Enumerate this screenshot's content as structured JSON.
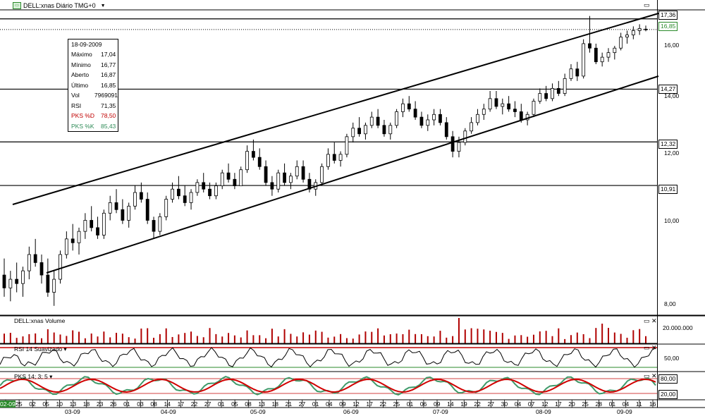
{
  "window": {
    "title": "DELL:xnas Diário TMG+0",
    "icon": "chart-window-icon"
  },
  "price_axis": {
    "ticks": [
      "16,00",
      "14,00",
      "12,00",
      "10,00",
      "8,00"
    ],
    "levels": [
      "17,36",
      "16,85",
      "14,27",
      "12,32",
      "10,91"
    ]
  },
  "info_box": {
    "date": "18-09-2009",
    "rows": [
      {
        "label": "Máximo",
        "value": "17,04"
      },
      {
        "label": "Mínimo",
        "value": "16,77"
      },
      {
        "label": "Aberto",
        "value": "16,87"
      },
      {
        "label": "Último",
        "value": "16,85"
      },
      {
        "label": "Vol",
        "value": "7969091"
      },
      {
        "label": "RSI",
        "value": "71,35"
      },
      {
        "label": "PKS %D",
        "value": "78,50"
      },
      {
        "label": "PKS %K",
        "value": "85,43"
      }
    ],
    "colors": {
      "pksd": "#c00000",
      "pksk": "#2e8b57"
    }
  },
  "volume_pane": {
    "title": "DELL:xnas Volume",
    "tick": "20.000.000"
  },
  "rsi_pane": {
    "title": "RSI 14 Suavizado",
    "tick": "50,00"
  },
  "pks_pane": {
    "title": "PKS 14; 3; 5",
    "ticks": [
      "80,00",
      "20,00"
    ]
  },
  "x_axis": {
    "days": [
      "02-09",
      "25",
      "02",
      "05",
      "10",
      "13",
      "18",
      "23",
      "26",
      "01",
      "03",
      "08",
      "14",
      "17",
      "22",
      "27",
      "01",
      "05",
      "08",
      "13",
      "18",
      "21",
      "27",
      "01",
      "04",
      "09",
      "12",
      "17",
      "22",
      "25",
      "01",
      "06",
      "09",
      "14",
      "19",
      "22",
      "27",
      "30",
      "04",
      "07",
      "12",
      "17",
      "20",
      "25",
      "28",
      "01",
      "04",
      "11",
      "16"
    ],
    "months": [
      "03-09",
      "04-09",
      "05-09",
      "06-09",
      "07-09",
      "08-09",
      "09-09"
    ]
  },
  "colors": {
    "accent": "#2a8a2a",
    "rsi_line": "#000000",
    "rsi_ref": "#c00000",
    "pks_d": "#d00000",
    "pks_k": "#3f9a6a"
  },
  "chart_data": {
    "type": "candlestick",
    "title": "DELL:xnas Diário TMG+0",
    "ylim": [
      7.6,
      17.8
    ],
    "log_scale": true,
    "horizontal_levels": [
      17.36,
      14.27,
      12.32,
      10.91
    ],
    "last_price": 16.85,
    "trend_channel": {
      "upper": {
        "from": [
          "2009-02",
          10.62
        ],
        "to": [
          "2009-09",
          17.15
        ]
      },
      "lower": {
        "from": [
          "2009-03",
          8.9
        ],
        "to": [
          "2009-09",
          14.55
        ]
      }
    },
    "ohlc": [
      [
        8.5,
        8.9,
        8.0,
        8.2
      ],
      [
        8.2,
        8.6,
        7.9,
        8.4
      ],
      [
        8.4,
        8.8,
        8.1,
        8.3
      ],
      [
        8.3,
        8.7,
        8.0,
        8.6
      ],
      [
        8.6,
        9.2,
        8.4,
        9.0
      ],
      [
        9.0,
        9.4,
        8.7,
        8.8
      ],
      [
        8.8,
        9.0,
        8.3,
        8.5
      ],
      [
        8.5,
        8.9,
        8.0,
        8.1
      ],
      [
        8.1,
        8.6,
        7.8,
        8.4
      ],
      [
        8.4,
        9.1,
        8.3,
        9.0
      ],
      [
        9.0,
        9.6,
        8.9,
        9.4
      ],
      [
        9.4,
        9.8,
        9.1,
        9.3
      ],
      [
        9.3,
        9.7,
        9.0,
        9.6
      ],
      [
        9.6,
        10.1,
        9.4,
        9.9
      ],
      [
        9.9,
        10.3,
        9.6,
        9.7
      ],
      [
        9.7,
        10.0,
        9.4,
        9.5
      ],
      [
        9.5,
        10.2,
        9.4,
        10.1
      ],
      [
        10.1,
        10.6,
        9.9,
        10.4
      ],
      [
        10.4,
        10.8,
        10.1,
        10.2
      ],
      [
        10.2,
        10.5,
        9.8,
        9.9
      ],
      [
        9.9,
        10.4,
        9.7,
        10.3
      ],
      [
        10.3,
        10.9,
        10.2,
        10.7
      ],
      [
        10.7,
        11.0,
        10.4,
        10.5
      ],
      [
        10.5,
        10.7,
        9.8,
        9.9
      ],
      [
        9.9,
        10.0,
        9.4,
        9.6
      ],
      [
        9.6,
        10.1,
        9.5,
        10.0
      ],
      [
        10.0,
        10.6,
        9.9,
        10.5
      ],
      [
        10.5,
        11.0,
        10.4,
        10.8
      ],
      [
        10.8,
        11.2,
        10.5,
        10.6
      ],
      [
        10.6,
        10.9,
        10.3,
        10.4
      ],
      [
        10.4,
        10.8,
        10.2,
        10.7
      ],
      [
        10.7,
        11.1,
        10.6,
        11.0
      ],
      [
        11.0,
        11.3,
        10.7,
        10.8
      ],
      [
        10.8,
        11.0,
        10.5,
        10.6
      ],
      [
        10.6,
        11.0,
        10.5,
        10.9
      ],
      [
        10.9,
        11.4,
        10.8,
        11.3
      ],
      [
        11.3,
        11.6,
        11.0,
        11.1
      ],
      [
        11.1,
        11.3,
        10.8,
        10.9
      ],
      [
        10.9,
        11.5,
        10.9,
        11.4
      ],
      [
        11.4,
        12.2,
        11.3,
        12.0
      ],
      [
        12.0,
        12.4,
        11.7,
        11.8
      ],
      [
        11.8,
        12.1,
        11.4,
        11.5
      ],
      [
        11.5,
        11.7,
        10.9,
        11.0
      ],
      [
        11.0,
        11.2,
        10.6,
        10.8
      ],
      [
        10.8,
        11.4,
        10.7,
        11.3
      ],
      [
        11.3,
        11.6,
        10.9,
        11.0
      ],
      [
        11.0,
        11.3,
        10.8,
        11.2
      ],
      [
        11.2,
        11.7,
        11.1,
        11.5
      ],
      [
        11.5,
        11.7,
        11.0,
        11.1
      ],
      [
        11.1,
        11.3,
        10.7,
        10.8
      ],
      [
        10.8,
        11.1,
        10.6,
        11.0
      ],
      [
        11.0,
        11.6,
        10.9,
        11.5
      ],
      [
        11.5,
        12.1,
        11.4,
        11.9
      ],
      [
        11.9,
        12.3,
        11.6,
        11.7
      ],
      [
        11.7,
        12.0,
        11.5,
        11.9
      ],
      [
        11.9,
        12.6,
        11.8,
        12.5
      ],
      [
        12.5,
        13.0,
        12.3,
        12.8
      ],
      [
        12.8,
        13.2,
        12.5,
        12.6
      ],
      [
        12.6,
        13.0,
        12.4,
        12.9
      ],
      [
        12.9,
        13.4,
        12.8,
        13.2
      ],
      [
        13.2,
        13.5,
        12.8,
        12.9
      ],
      [
        12.9,
        13.1,
        12.5,
        12.6
      ],
      [
        12.6,
        13.0,
        12.4,
        12.9
      ],
      [
        12.9,
        13.5,
        12.8,
        13.4
      ],
      [
        13.4,
        13.9,
        13.2,
        13.7
      ],
      [
        13.7,
        14.0,
        13.4,
        13.5
      ],
      [
        13.5,
        13.8,
        13.1,
        13.2
      ],
      [
        13.2,
        13.4,
        12.8,
        12.9
      ],
      [
        12.9,
        13.3,
        12.7,
        13.1
      ],
      [
        13.1,
        13.5,
        12.9,
        13.3
      ],
      [
        13.3,
        13.5,
        12.9,
        13.0
      ],
      [
        13.0,
        13.2,
        12.4,
        12.5
      ],
      [
        12.5,
        12.7,
        11.8,
        12.0
      ],
      [
        12.0,
        12.5,
        11.8,
        12.3
      ],
      [
        12.3,
        12.8,
        12.2,
        12.7
      ],
      [
        12.7,
        13.2,
        12.6,
        13.0
      ],
      [
        13.0,
        13.5,
        12.9,
        13.3
      ],
      [
        13.3,
        13.7,
        13.1,
        13.5
      ],
      [
        13.5,
        14.2,
        13.4,
        13.9
      ],
      [
        13.9,
        14.2,
        13.5,
        13.6
      ],
      [
        13.6,
        13.9,
        13.3,
        13.7
      ],
      [
        13.7,
        14.0,
        13.4,
        13.5
      ],
      [
        13.5,
        13.8,
        13.2,
        13.4
      ],
      [
        13.4,
        13.7,
        13.0,
        13.1
      ],
      [
        13.1,
        13.4,
        12.9,
        13.3
      ],
      [
        13.3,
        13.9,
        13.2,
        13.8
      ],
      [
        13.8,
        14.3,
        13.7,
        14.1
      ],
      [
        14.1,
        14.4,
        13.8,
        13.9
      ],
      [
        13.9,
        14.5,
        13.8,
        14.3
      ],
      [
        14.3,
        14.6,
        14.0,
        14.1
      ],
      [
        14.1,
        14.9,
        14.0,
        14.7
      ],
      [
        14.7,
        15.3,
        14.6,
        15.1
      ],
      [
        15.1,
        15.4,
        14.6,
        14.8
      ],
      [
        14.8,
        16.4,
        14.7,
        16.2
      ],
      [
        16.2,
        17.5,
        15.8,
        16.0
      ],
      [
        16.0,
        16.2,
        15.3,
        15.4
      ],
      [
        15.4,
        15.8,
        15.2,
        15.6
      ],
      [
        15.6,
        16.0,
        15.4,
        15.8
      ],
      [
        15.8,
        16.1,
        15.5,
        16.0
      ],
      [
        16.0,
        16.7,
        15.9,
        16.5
      ],
      [
        16.5,
        16.8,
        16.2,
        16.6
      ],
      [
        16.6,
        17.0,
        16.4,
        16.8
      ],
      [
        16.8,
        17.1,
        16.6,
        16.9
      ],
      [
        16.87,
        17.04,
        16.77,
        16.85
      ]
    ],
    "volume_max_label": "20.000.000",
    "indicators": {
      "RSI 14 Suavizado": {
        "last": 71.35
      },
      "PKS %D": {
        "last": 78.5
      },
      "PKS %K": {
        "last": 85.43
      }
    }
  }
}
